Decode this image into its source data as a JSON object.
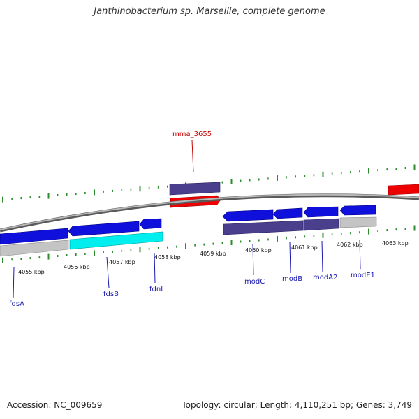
{
  "title": "Janthinobacterium sp. Marseille, complete genome",
  "footer": {
    "accession": "Accession: NC_009659",
    "stats": "Topology: circular; Length: 4,110,251 bp; Genes: 3,749"
  },
  "colors": {
    "backbone": "#8a8a8a",
    "ticks": "#2e8b2e",
    "blue_gene": "#1010dd",
    "dark_gene": "#4a3f8c",
    "red_gene": "#ee0000",
    "cyan_gene": "#00eeee",
    "gray_gene": "#c4c4c4",
    "label_blue": "#1a1ab0",
    "label_red": "#c80000"
  },
  "scale_labels": [
    {
      "id": "4055",
      "text": "4055 kbp"
    },
    {
      "id": "4056",
      "text": "4056 kbp"
    },
    {
      "id": "4057",
      "text": "4057 kbp"
    },
    {
      "id": "4058",
      "text": "4058 kbp"
    },
    {
      "id": "4059",
      "text": "4059 kbp"
    },
    {
      "id": "4060",
      "text": "4060 kbp"
    },
    {
      "id": "4061",
      "text": "4061 kbp"
    },
    {
      "id": "4062",
      "text": "4062 kbp"
    },
    {
      "id": "4063",
      "text": "4063 kbp"
    }
  ],
  "gene_labels": [
    {
      "id": "fdsA",
      "text": "fdsA"
    },
    {
      "id": "fdsB",
      "text": "fdsB"
    },
    {
      "id": "fdnI",
      "text": "fdnI"
    },
    {
      "id": "modC",
      "text": "modC"
    },
    {
      "id": "modB",
      "text": "modB"
    },
    {
      "id": "modA2",
      "text": "modA2"
    },
    {
      "id": "modE1",
      "text": "modE1"
    },
    {
      "id": "mma_3655",
      "text": "mma_3655"
    }
  ]
}
